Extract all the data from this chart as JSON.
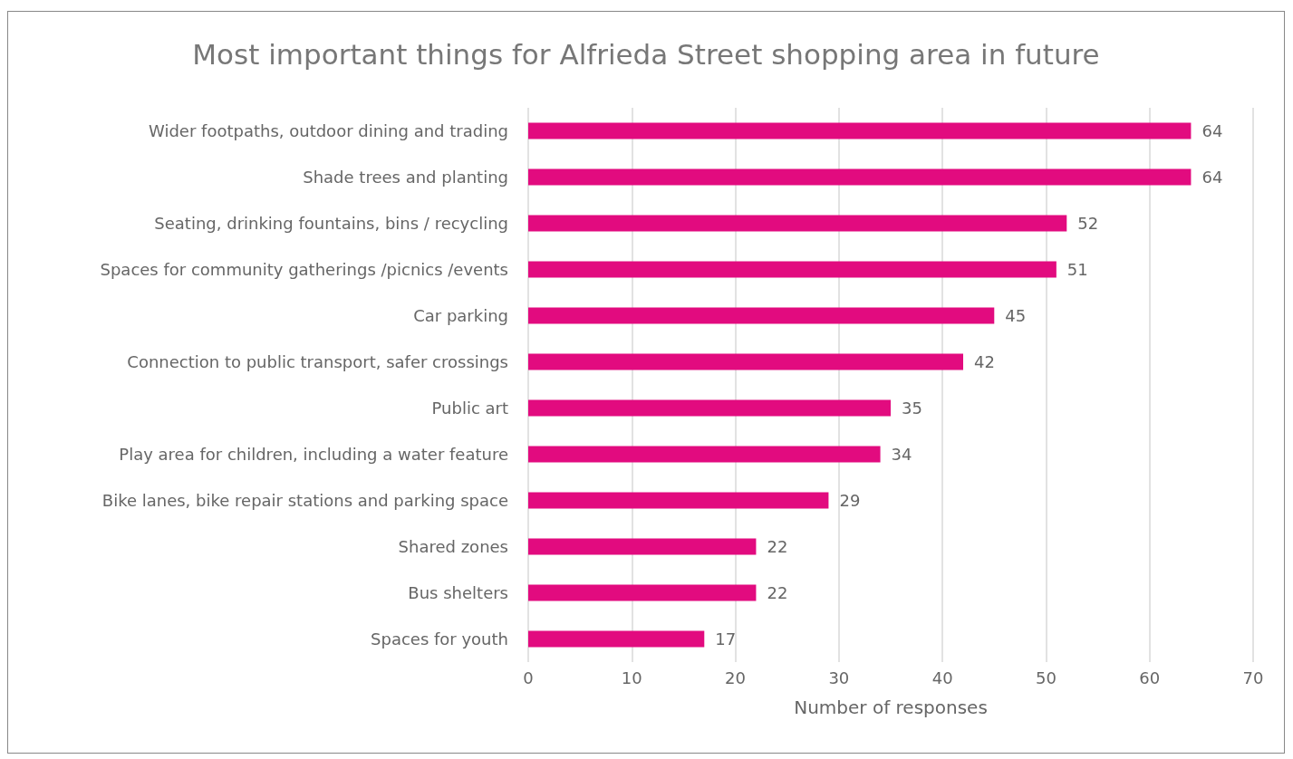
{
  "chart_data": {
    "type": "bar",
    "orientation": "horizontal",
    "title": "Most important things for Alfrieda Street shopping area in future",
    "xlabel": "Number of responses",
    "categories": [
      "Wider footpaths, outdoor dining and trading",
      "Shade trees and planting",
      "Seating, drinking fountains, bins / recycling",
      "Spaces for community gatherings /picnics /events",
      "Car parking",
      "Connection to public transport, safer crossings",
      "Public art",
      "Play area for children, including a water feature",
      "Bike lanes, bike repair stations and parking space",
      "Shared zones",
      "Bus shelters",
      "Spaces for youth"
    ],
    "values": [
      64,
      64,
      52,
      51,
      45,
      42,
      35,
      34,
      29,
      22,
      22,
      17
    ],
    "color": "#e20b7f",
    "xlim": [
      0,
      70
    ],
    "xticks": [
      0,
      10,
      20,
      30,
      40,
      50,
      60,
      70
    ],
    "grid": "x",
    "data_labels": true
  }
}
